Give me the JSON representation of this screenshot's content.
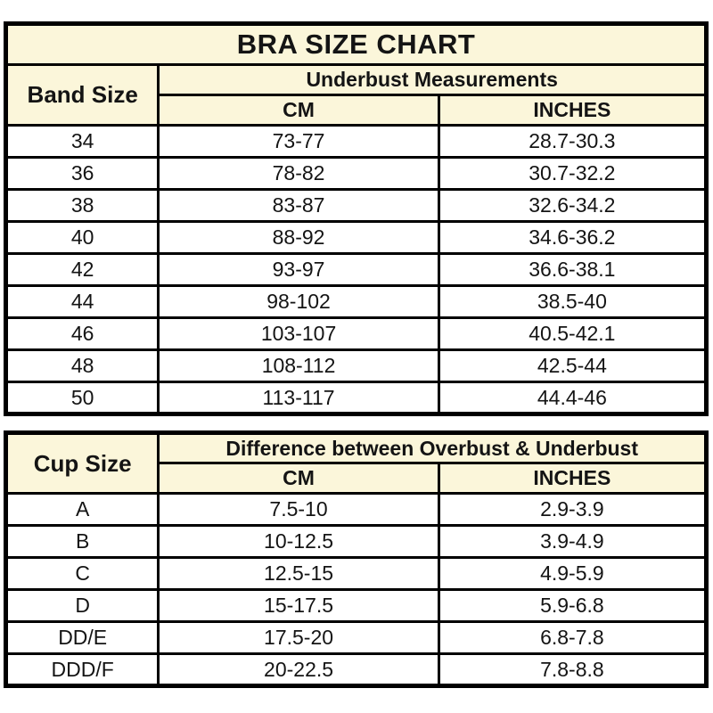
{
  "page": {
    "title": "BRA SIZE CHART"
  },
  "colors": {
    "header_bg": "#FBF6DA",
    "row_bg": "#FFFFFF",
    "border": "#000000",
    "text": "#141414",
    "page_bg": "#FFFFFF"
  },
  "band_table": {
    "corner_header": "Band Size",
    "group_header": "Underbust Measurements",
    "col_headers": [
      "CM",
      "INCHES"
    ],
    "rows": [
      {
        "label": "34",
        "cm": "73-77",
        "inches": "28.7-30.3"
      },
      {
        "label": "36",
        "cm": "78-82",
        "inches": "30.7-32.2"
      },
      {
        "label": "38",
        "cm": "83-87",
        "inches": "32.6-34.2"
      },
      {
        "label": "40",
        "cm": "88-92",
        "inches": "34.6-36.2"
      },
      {
        "label": "42",
        "cm": "93-97",
        "inches": "36.6-38.1"
      },
      {
        "label": "44",
        "cm": "98-102",
        "inches": "38.5-40"
      },
      {
        "label": "46",
        "cm": "103-107",
        "inches": "40.5-42.1"
      },
      {
        "label": "48",
        "cm": "108-112",
        "inches": "42.5-44"
      },
      {
        "label": "50",
        "cm": "113-117",
        "inches": "44.4-46"
      }
    ]
  },
  "cup_table": {
    "corner_header": "Cup Size",
    "group_header": "Difference between Overbust & Underbust",
    "col_headers": [
      "CM",
      "INCHES"
    ],
    "rows": [
      {
        "label": "A",
        "cm": "7.5-10",
        "inches": "2.9-3.9"
      },
      {
        "label": "B",
        "cm": "10-12.5",
        "inches": "3.9-4.9"
      },
      {
        "label": "C",
        "cm": "12.5-15",
        "inches": "4.9-5.9"
      },
      {
        "label": "D",
        "cm": "15-17.5",
        "inches": "5.9-6.8"
      },
      {
        "label": "DD/E",
        "cm": "17.5-20",
        "inches": "6.8-7.8"
      },
      {
        "label": "DDD/F",
        "cm": "20-22.5",
        "inches": "7.8-8.8"
      }
    ]
  },
  "chart_data": [
    {
      "type": "table",
      "title": "BRA SIZE CHART",
      "group_header": "Underbust Measurements",
      "columns": [
        "Band Size",
        "CM",
        "INCHES"
      ],
      "rows": [
        [
          "34",
          "73-77",
          "28.7-30.3"
        ],
        [
          "36",
          "78-82",
          "30.7-32.2"
        ],
        [
          "38",
          "83-87",
          "32.6-34.2"
        ],
        [
          "40",
          "88-92",
          "34.6-36.2"
        ],
        [
          "42",
          "93-97",
          "36.6-38.1"
        ],
        [
          "44",
          "98-102",
          "38.5-40"
        ],
        [
          "46",
          "103-107",
          "40.5-42.1"
        ],
        [
          "48",
          "108-112",
          "42.5-44"
        ],
        [
          "50",
          "113-117",
          "44.4-46"
        ]
      ]
    },
    {
      "type": "table",
      "title": "",
      "group_header": "Difference between Overbust & Underbust",
      "columns": [
        "Cup Size",
        "CM",
        "INCHES"
      ],
      "rows": [
        [
          "A",
          "7.5-10",
          "2.9-3.9"
        ],
        [
          "B",
          "10-12.5",
          "3.9-4.9"
        ],
        [
          "C",
          "12.5-15",
          "4.9-5.9"
        ],
        [
          "D",
          "15-17.5",
          "5.9-6.8"
        ],
        [
          "DD/E",
          "17.5-20",
          "6.8-7.8"
        ],
        [
          "DDD/F",
          "20-22.5",
          "7.8-8.8"
        ]
      ]
    }
  ]
}
